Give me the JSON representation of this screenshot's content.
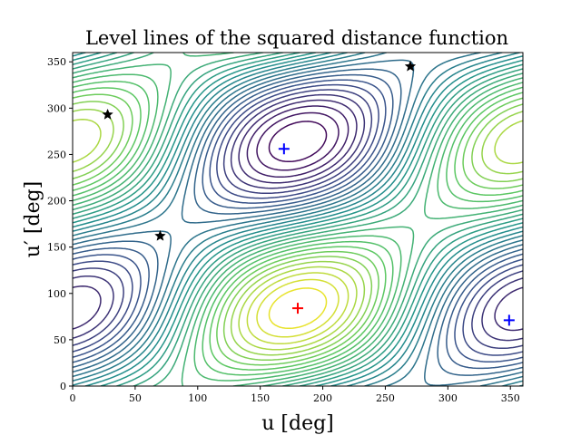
{
  "chart_data": {
    "type": "contour",
    "title": "Level lines of the squared distance function",
    "xlabel": "u [deg]",
    "ylabel": "u′ [deg]",
    "xlim": [
      0,
      360
    ],
    "ylim": [
      0,
      360
    ],
    "xticks": [
      0,
      50,
      100,
      150,
      200,
      250,
      300,
      350
    ],
    "yticks": [
      0,
      50,
      100,
      150,
      200,
      250,
      300,
      350
    ],
    "grid": false,
    "colormap": "viridis",
    "colormap_colors": [
      "#440154",
      "#3b528b",
      "#21918c",
      "#5ec962",
      "#fde725"
    ],
    "markers": [
      {
        "name": "red-plus",
        "symbol": "+",
        "color": "#ff0000",
        "x": 180,
        "y": 84
      },
      {
        "name": "blue-plus",
        "symbol": "+",
        "color": "#0000ff",
        "x": 169,
        "y": 256
      },
      {
        "name": "blue-plus",
        "symbol": "+",
        "color": "#0000ff",
        "x": 349,
        "y": 71
      },
      {
        "name": "black-star",
        "symbol": "star",
        "color": "#000000",
        "x": 28,
        "y": 293
      },
      {
        "name": "black-star",
        "symbol": "star",
        "color": "#000000",
        "x": 70,
        "y": 162
      },
      {
        "name": "black-star",
        "symbol": "star",
        "color": "#000000",
        "x": 270,
        "y": 345
      }
    ]
  }
}
